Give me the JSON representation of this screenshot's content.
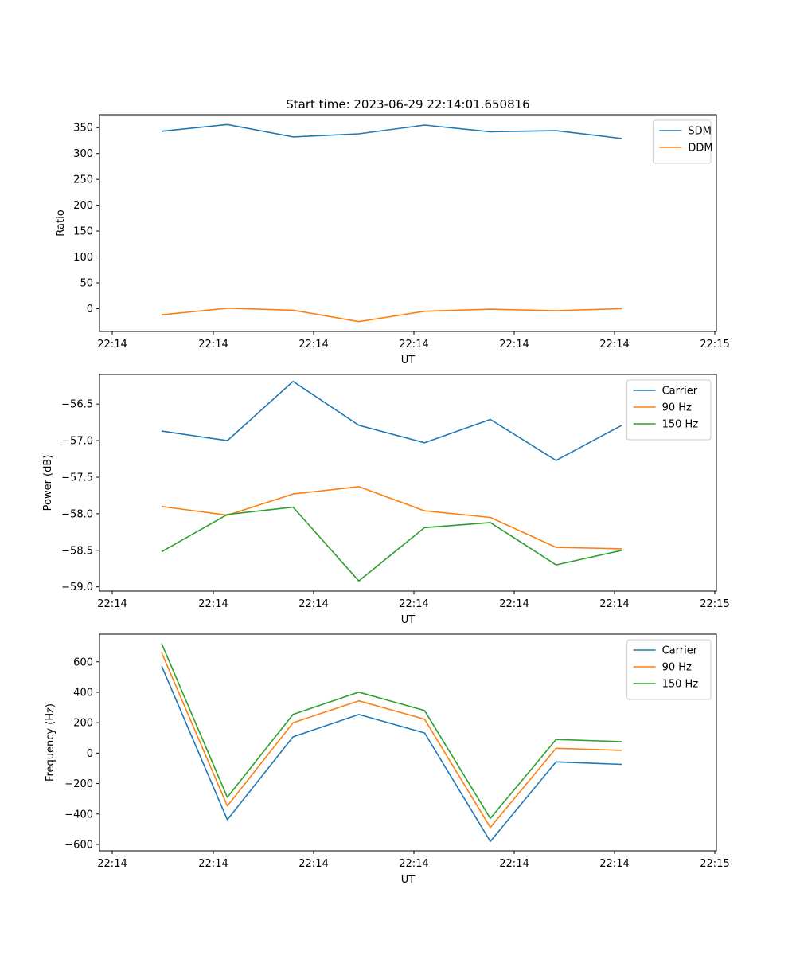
{
  "figure_title": "Start time: 2023-06-29 22:14:01.650816",
  "colors": {
    "blue": "#1f77b4",
    "orange": "#ff7f0e",
    "green": "#2ca02c"
  },
  "x_tick_labels": [
    "22:14",
    "22:14",
    "22:14",
    "22:14",
    "22:14",
    "22:14",
    "22:15"
  ],
  "chart_data": [
    {
      "type": "line",
      "xlabel": "UT",
      "ylabel": "Ratio",
      "ylim": [
        -44,
        375
      ],
      "yticks": [
        0,
        50,
        100,
        150,
        200,
        250,
        300,
        350
      ],
      "ytick_labels": [
        "0",
        "50",
        "100",
        "150",
        "200",
        "250",
        "300",
        "350"
      ],
      "grid": false,
      "legend": "upper right",
      "x": [
        1,
        2,
        3,
        4,
        5,
        6,
        7,
        8
      ],
      "series": [
        {
          "name": "SDM",
          "color": "#1f77b4",
          "values": [
            343,
            356,
            332,
            338,
            355,
            342,
            344,
            329
          ]
        },
        {
          "name": "DDM",
          "color": "#ff7f0e",
          "values": [
            -12,
            1,
            -3,
            -25,
            -5,
            -1,
            -4,
            0
          ]
        }
      ]
    },
    {
      "type": "line",
      "xlabel": "UT",
      "ylabel": "Power (dB)",
      "ylim": [
        -59.058,
        -56.095
      ],
      "yticks": [
        -59.0,
        -58.5,
        -58.0,
        -57.5,
        -57.0,
        -56.5
      ],
      "ytick_labels": [
        "−59.0",
        "−58.5",
        "−58.0",
        "−57.5",
        "−57.0",
        "−56.5"
      ],
      "grid": false,
      "legend": "upper right",
      "x": [
        1,
        2,
        3,
        4,
        5,
        6,
        7,
        8
      ],
      "series": [
        {
          "name": "Carrier",
          "color": "#1f77b4",
          "values": [
            -56.87,
            -57.0,
            -56.19,
            -56.79,
            -57.03,
            -56.71,
            -57.27,
            -56.79
          ]
        },
        {
          "name": "90 Hz",
          "color": "#ff7f0e",
          "values": [
            -57.9,
            -58.02,
            -57.73,
            -57.63,
            -57.96,
            -58.05,
            -58.46,
            -58.48
          ]
        },
        {
          "name": "150 Hz",
          "color": "#2ca02c",
          "values": [
            -58.52,
            -58.01,
            -57.91,
            -58.92,
            -58.19,
            -58.12,
            -58.7,
            -58.5
          ]
        }
      ]
    },
    {
      "type": "line",
      "xlabel": "UT",
      "ylabel": "Frequency (Hz)",
      "ylim": [
        -642,
        782
      ],
      "yticks": [
        -600,
        -400,
        -200,
        0,
        200,
        400,
        600
      ],
      "ytick_labels": [
        "−600",
        "−400",
        "−200",
        "0",
        "200",
        "400",
        "600"
      ],
      "grid": false,
      "legend": "upper right",
      "x": [
        1,
        2,
        3,
        4,
        5,
        6,
        7,
        8
      ],
      "series": [
        {
          "name": "Carrier",
          "color": "#1f77b4",
          "values": [
            573,
            -438,
            107,
            254,
            133,
            -580,
            -57,
            -74
          ]
        },
        {
          "name": "90 Hz",
          "color": "#ff7f0e",
          "values": [
            661,
            -347,
            200,
            344,
            223,
            -488,
            32,
            18
          ]
        },
        {
          "name": "150 Hz",
          "color": "#2ca02c",
          "values": [
            721,
            -290,
            255,
            401,
            280,
            -429,
            90,
            75
          ]
        }
      ]
    }
  ]
}
